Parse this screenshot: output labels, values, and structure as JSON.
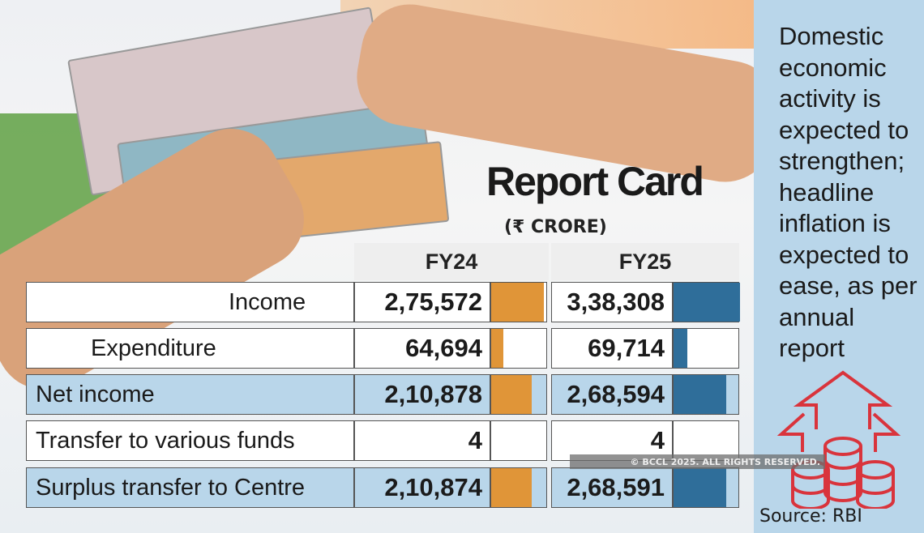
{
  "title": "Report Card",
  "unit": "(₹ CRORE)",
  "columns": [
    "FY24",
    "FY25"
  ],
  "colors": {
    "fy24_bar": "#e09538",
    "fy25_bar": "#2f6e9a",
    "highlight": "#b9d6ea",
    "icon": "#d9343c"
  },
  "rows": [
    {
      "label": "Income",
      "fy24": "2,75,572",
      "fy25": "3,38,308",
      "fy24_value": 275572,
      "fy25_value": 338308,
      "highlight": false
    },
    {
      "label": "Expenditure",
      "fy24": "64,694",
      "fy25": "69,714",
      "fy24_value": 64694,
      "fy25_value": 69714,
      "highlight": false
    },
    {
      "label": "Net income",
      "fy24": "2,10,878",
      "fy25": "2,68,594",
      "fy24_value": 210878,
      "fy25_value": 268594,
      "highlight": true
    },
    {
      "label": "Transfer to various  funds",
      "fy24": "4",
      "fy25": "4",
      "fy24_value": 4,
      "fy25_value": 4,
      "highlight": false
    },
    {
      "label": "Surplus transfer to Centre",
      "fy24": "2,10,874",
      "fy25": "2,68,591",
      "fy24_value": 210874,
      "fy25_value": 268591,
      "highlight": true
    }
  ],
  "side_text": "Domestic economic activity is expected to strengthen; headline inflation is expected to ease, as per annual report",
  "source": "Source: RBI",
  "watermark": "© BCCL 2025. ALL RIGHTS RESERVED.",
  "icon": "coins-with-up-arrows-icon"
}
